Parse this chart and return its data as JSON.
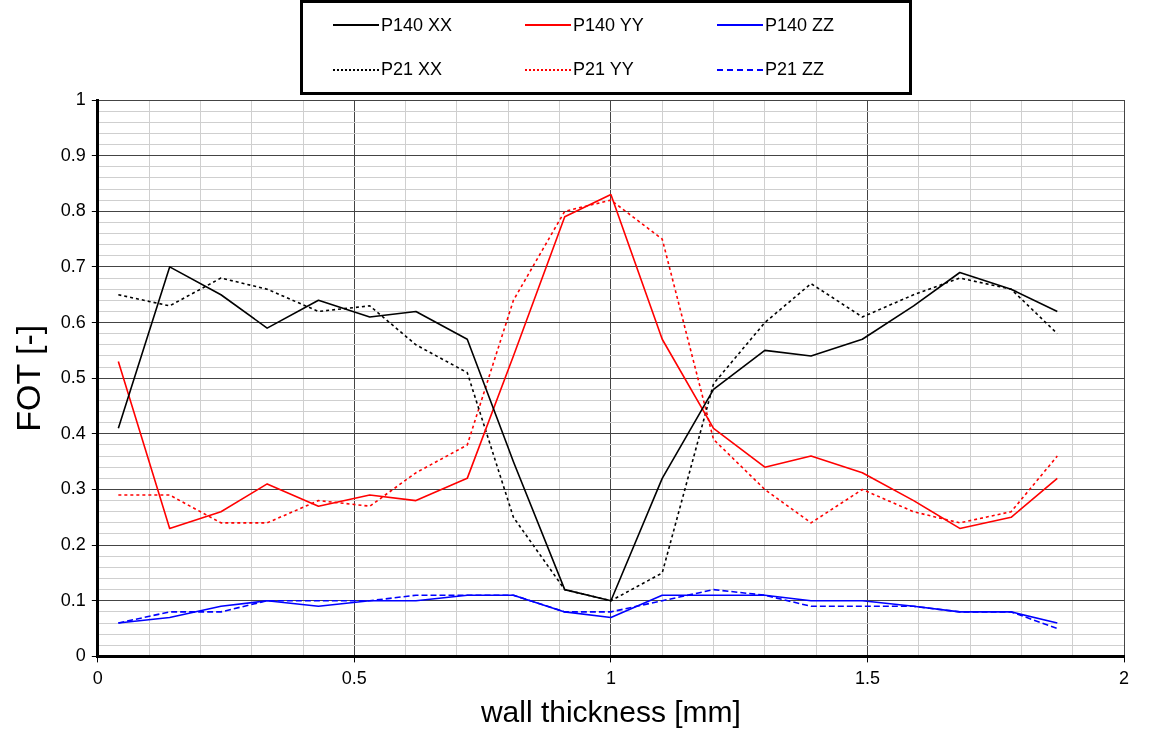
{
  "chart_data": {
    "type": "line",
    "xlabel": "wall thickness [mm]",
    "ylabel": "FOT [-]",
    "x": [
      0.04,
      0.14,
      0.24,
      0.33,
      0.43,
      0.53,
      0.62,
      0.72,
      0.81,
      0.91,
      1.0,
      1.1,
      1.2,
      1.3,
      1.39,
      1.49,
      1.59,
      1.68,
      1.78,
      1.87
    ],
    "series": [
      {
        "name": "P140 XX",
        "color": "#000000",
        "line_style": "solid",
        "values": [
          0.41,
          0.7,
          0.65,
          0.59,
          0.64,
          0.61,
          0.62,
          0.57,
          0.35,
          0.12,
          0.1,
          0.32,
          0.48,
          0.55,
          0.54,
          0.57,
          0.63,
          0.69,
          0.66,
          0.62
        ]
      },
      {
        "name": "P140 YY",
        "color": "#ff0000",
        "line_style": "solid",
        "values": [
          0.53,
          0.23,
          0.26,
          0.31,
          0.27,
          0.29,
          0.28,
          0.32,
          0.54,
          0.79,
          0.83,
          0.57,
          0.41,
          0.34,
          0.36,
          0.33,
          0.28,
          0.23,
          0.25,
          0.32
        ]
      },
      {
        "name": "P140 ZZ",
        "color": "#0000ff",
        "line_style": "solid",
        "values": [
          0.06,
          0.07,
          0.09,
          0.1,
          0.09,
          0.1,
          0.1,
          0.11,
          0.11,
          0.08,
          0.07,
          0.11,
          0.11,
          0.11,
          0.1,
          0.1,
          0.09,
          0.08,
          0.08,
          0.06
        ]
      },
      {
        "name": "P21 XX",
        "color": "#000000",
        "line_style": "dotted",
        "values": [
          0.65,
          0.63,
          0.68,
          0.66,
          0.62,
          0.63,
          0.56,
          0.51,
          0.25,
          0.12,
          0.1,
          0.15,
          0.49,
          0.6,
          0.67,
          0.61,
          0.65,
          0.68,
          0.66,
          0.58
        ]
      },
      {
        "name": "P21 YY",
        "color": "#ff0000",
        "line_style": "dotted",
        "values": [
          0.29,
          0.29,
          0.24,
          0.24,
          0.28,
          0.27,
          0.33,
          0.38,
          0.64,
          0.8,
          0.82,
          0.75,
          0.39,
          0.3,
          0.24,
          0.3,
          0.26,
          0.24,
          0.26,
          0.36
        ]
      },
      {
        "name": "P21 ZZ",
        "color": "#0000ff",
        "line_style": "dashed",
        "values": [
          0.06,
          0.08,
          0.08,
          0.1,
          0.1,
          0.1,
          0.11,
          0.11,
          0.11,
          0.08,
          0.08,
          0.1,
          0.12,
          0.11,
          0.09,
          0.09,
          0.09,
          0.08,
          0.08,
          0.05
        ]
      }
    ],
    "xlim": [
      0,
      2
    ],
    "xticks": [
      0,
      {
        "value": 0.1,
        "label": null
      },
      {
        "value": 0.2,
        "label": null
      },
      {
        "value": 0.3,
        "label": null
      },
      {
        "value": 0.4,
        "label": null
      },
      0.5,
      {
        "value": 0.6,
        "label": null
      },
      {
        "value": 0.7,
        "label": null
      },
      {
        "value": 0.8,
        "label": null
      },
      {
        "value": 0.9,
        "label": null
      },
      1,
      {
        "value": 1.1,
        "label": null
      },
      {
        "value": 1.2,
        "label": null
      },
      {
        "value": 1.3,
        "label": null
      },
      {
        "value": 1.4,
        "label": null
      },
      1.5,
      {
        "value": 1.6,
        "label": null
      },
      {
        "value": 1.7,
        "label": null
      },
      {
        "value": 1.8,
        "label": null
      },
      {
        "value": 1.9,
        "label": null
      },
      2
    ],
    "ylim": [
      0,
      1
    ],
    "yticks": [
      0,
      {
        "value": 0.02,
        "label": null
      },
      {
        "value": 0.04,
        "label": null
      },
      {
        "value": 0.06,
        "label": null
      },
      {
        "value": 0.08,
        "label": null
      },
      0.1,
      {
        "value": 0.12,
        "label": null
      },
      {
        "value": 0.14,
        "label": null
      },
      {
        "value": 0.16,
        "label": null
      },
      {
        "value": 0.18,
        "label": null
      },
      0.2,
      {
        "value": 0.22,
        "label": null
      },
      {
        "value": 0.24,
        "label": null
      },
      {
        "value": 0.26,
        "label": null
      },
      {
        "value": 0.28,
        "label": null
      },
      0.3,
      {
        "value": 0.32,
        "label": null
      },
      {
        "value": 0.34,
        "label": null
      },
      {
        "value": 0.36,
        "label": null
      },
      {
        "value": 0.38,
        "label": null
      },
      0.4,
      {
        "value": 0.42,
        "label": null
      },
      {
        "value": 0.44,
        "label": null
      },
      {
        "value": 0.46,
        "label": null
      },
      {
        "value": 0.48,
        "label": null
      },
      0.5,
      {
        "value": 0.52,
        "label": null
      },
      {
        "value": 0.54,
        "label": null
      },
      {
        "value": 0.56,
        "label": null
      },
      {
        "value": 0.58,
        "label": null
      },
      0.6,
      {
        "value": 0.62,
        "label": null
      },
      {
        "value": 0.64,
        "label": null
      },
      {
        "value": 0.66,
        "label": null
      },
      {
        "value": 0.68,
        "label": null
      },
      0.7,
      {
        "value": 0.72,
        "label": null
      },
      {
        "value": 0.74,
        "label": null
      },
      {
        "value": 0.76,
        "label": null
      },
      {
        "value": 0.78,
        "label": null
      },
      0.8,
      {
        "value": 0.82,
        "label": null
      },
      {
        "value": 0.84,
        "label": null
      },
      {
        "value": 0.86,
        "label": null
      },
      {
        "value": 0.88,
        "label": null
      },
      0.9,
      {
        "value": 0.92,
        "label": null
      },
      {
        "value": 0.94,
        "label": null
      },
      {
        "value": 0.96,
        "label": null
      },
      {
        "value": 0.98,
        "label": null
      },
      1
    ],
    "grid": true,
    "legend": "top",
    "marker": "none"
  }
}
